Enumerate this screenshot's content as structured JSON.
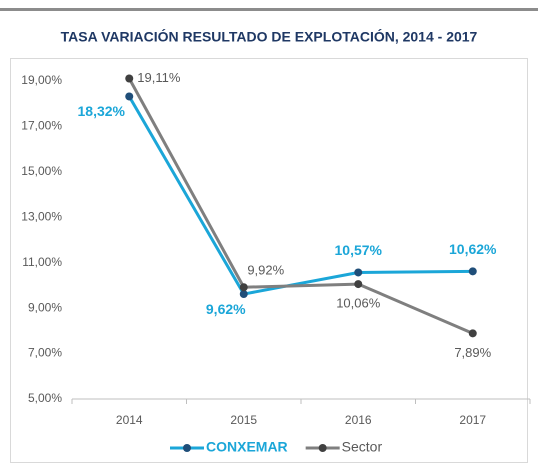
{
  "chart_data": {
    "type": "line",
    "title": "TASA VARIACIÓN RESULTADO DE EXPLOTACIÓN, 2014 - 2017",
    "categories": [
      "2014",
      "2015",
      "2016",
      "2017"
    ],
    "series": [
      {
        "name": "CONXEMAR",
        "color": "#1ba6d8",
        "marker_color": "#1f4e79",
        "values": [
          18.32,
          9.62,
          10.57,
          10.62
        ],
        "value_labels": [
          "18,32%",
          "9,62%",
          "10,57%",
          "10,62%"
        ]
      },
      {
        "name": "Sector",
        "color": "#7f7f7f",
        "marker_color": "#404040",
        "values": [
          19.11,
          9.92,
          10.06,
          7.89
        ],
        "value_labels": [
          "19,11%",
          "9,92%",
          "10,06%",
          "7,89%"
        ]
      }
    ],
    "ylim": [
      5,
      19
    ],
    "yticks": [
      {
        "value": 5,
        "label": "5,00%"
      },
      {
        "value": 7,
        "label": "7,00%"
      },
      {
        "value": 9,
        "label": "9,00%"
      },
      {
        "value": 11,
        "label": "11,00%"
      },
      {
        "value": 13,
        "label": "13,00%"
      },
      {
        "value": 15,
        "label": "15,00%"
      },
      {
        "value": 17,
        "label": "17,00%"
      },
      {
        "value": 19,
        "label": "19,00%"
      }
    ],
    "grid": false,
    "legend": "bottom"
  }
}
